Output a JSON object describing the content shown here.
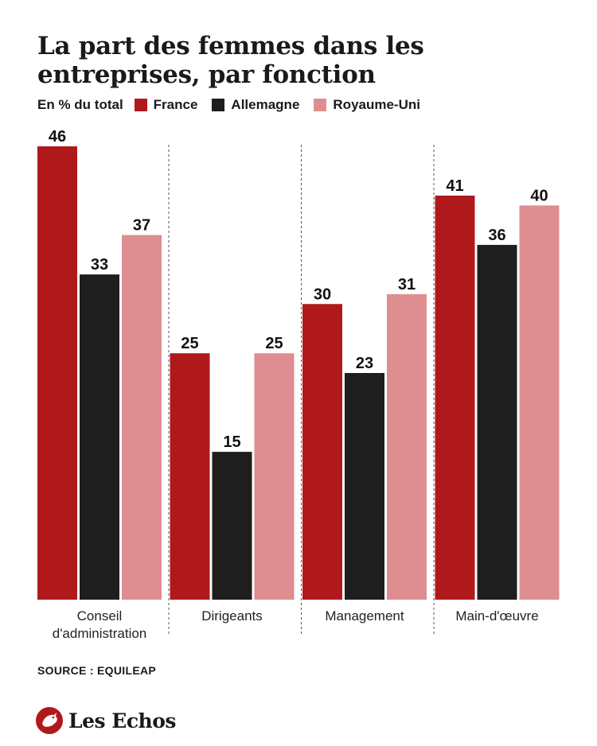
{
  "title": "La part des femmes dans les entreprises, par fonction",
  "source": "SOURCE : EQUILEAP",
  "brand": "Les Echos",
  "chart_data": {
    "type": "bar",
    "unit_label": "En % du total",
    "categories": [
      [
        "Conseil",
        "d'administration"
      ],
      [
        "Dirigeants"
      ],
      [
        "Management"
      ],
      [
        "Main-d'œuvre"
      ]
    ],
    "series": [
      {
        "name": "France",
        "color": "#b0191c",
        "values": [
          46,
          25,
          30,
          41
        ]
      },
      {
        "name": "Allemagne",
        "color": "#1e1e1e",
        "values": [
          33,
          15,
          23,
          36
        ]
      },
      {
        "name": "Royaume-Uni",
        "color": "#de8d91",
        "values": [
          37,
          25,
          31,
          40
        ]
      }
    ],
    "ylim": [
      0,
      46
    ],
    "legend": "top-left",
    "grid": false,
    "category_separators": "dashed"
  }
}
